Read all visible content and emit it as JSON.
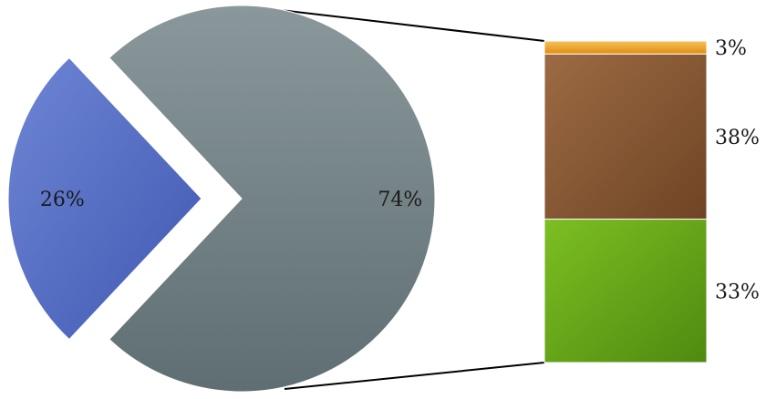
{
  "chart_data": {
    "type": "pie",
    "subtype": "pie-of-bar",
    "pie": {
      "slices": [
        {
          "label": "26%",
          "value": 26,
          "color": "#5b74c6",
          "exploded": true
        },
        {
          "label": "74%",
          "value": 74,
          "color": "#7a8a8e",
          "exploded": false
        }
      ]
    },
    "bar": {
      "segments": [
        {
          "label": "3%",
          "value": 3,
          "color": "#f1a21f"
        },
        {
          "label": "38%",
          "value": 38,
          "color": "#8a5a35"
        },
        {
          "label": "33%",
          "value": 33,
          "color": "#66a51a"
        }
      ]
    },
    "legend": "none",
    "grid": false
  }
}
